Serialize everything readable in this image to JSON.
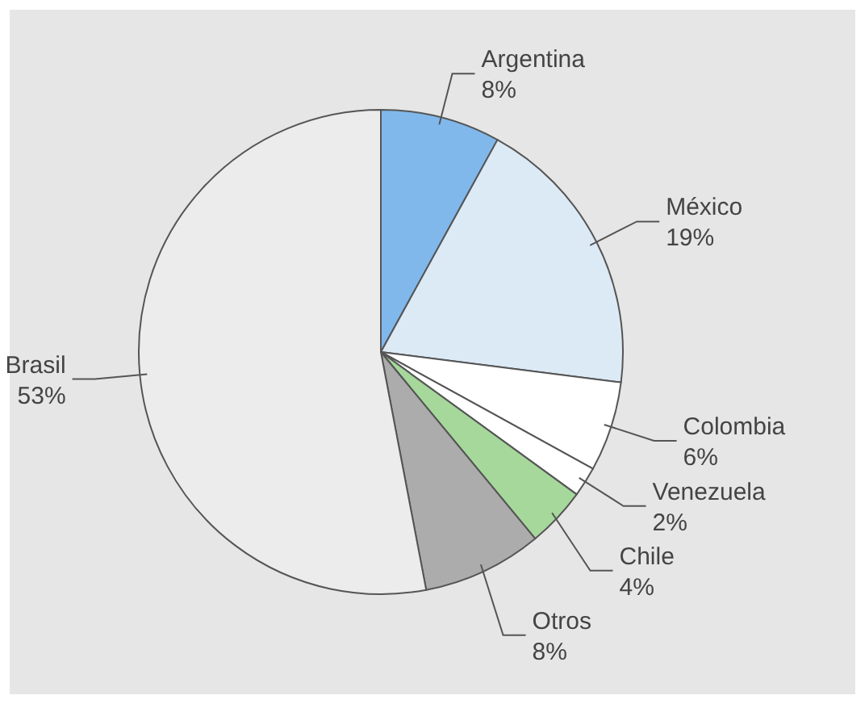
{
  "chart_data": {
    "type": "pie",
    "categories": [
      "Argentina",
      "México",
      "Colombia",
      "Venezuela",
      "Chile",
      "Otros",
      "Brasil"
    ],
    "values": [
      8,
      19,
      6,
      2,
      4,
      8,
      53
    ],
    "value_labels": [
      "8%",
      "19%",
      "6%",
      "2%",
      "4%",
      "8%",
      "53%"
    ],
    "colors": [
      "#80b8ec",
      "#dceaf6",
      "#ffffff",
      "#ffffff",
      "#a6d89c",
      "#acacac",
      "#ececec"
    ]
  }
}
